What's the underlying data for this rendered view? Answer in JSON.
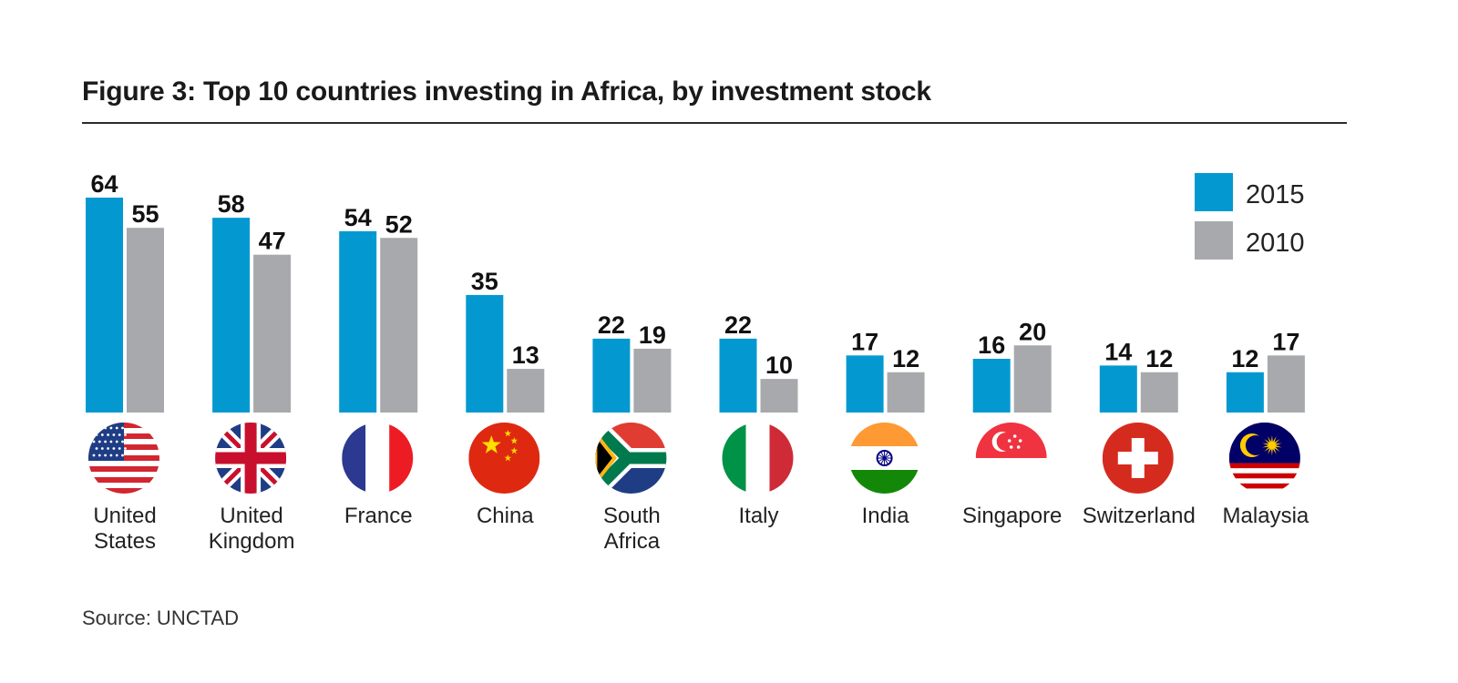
{
  "title": "Figure 3:  Top 10 countries investing in Africa, by investment stock",
  "source": "Source: UNCTAD",
  "colors": {
    "s2015": "#0399d0",
    "s2010": "#a7a9ac",
    "text": "#1a1a1a"
  },
  "chart_data": {
    "type": "bar",
    "title": "Figure 3:  Top 10 countries investing in Africa, by investment stock",
    "xlabel": "",
    "ylabel": "",
    "ylim": [
      0,
      64
    ],
    "grid": false,
    "legend": "top-right",
    "categories": [
      [
        "United",
        "States"
      ],
      [
        "United",
        "Kingdom"
      ],
      [
        "France"
      ],
      [
        "China"
      ],
      [
        "South",
        "Africa"
      ],
      [
        "Italy"
      ],
      [
        "India"
      ],
      [
        "Singapore"
      ],
      [
        "Switzerland"
      ],
      [
        "Malaysia"
      ]
    ],
    "flags": [
      "us-flag-icon",
      "uk-flag-icon",
      "france-flag-icon",
      "china-flag-icon",
      "south-africa-flag-icon",
      "italy-flag-icon",
      "india-flag-icon",
      "singapore-flag-icon",
      "switzerland-flag-icon",
      "malaysia-flag-icon"
    ],
    "series": [
      {
        "name": "2015",
        "values": [
          64,
          58,
          54,
          35,
          22,
          22,
          17,
          16,
          14,
          12
        ]
      },
      {
        "name": "2010",
        "values": [
          55,
          47,
          52,
          13,
          19,
          10,
          12,
          20,
          12,
          17
        ]
      }
    ]
  }
}
